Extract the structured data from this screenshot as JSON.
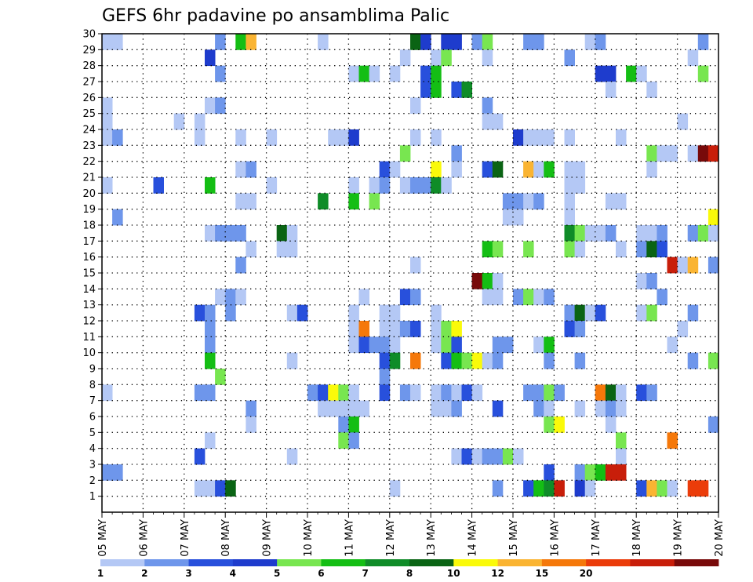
{
  "chart_data": {
    "type": "heatmap",
    "title": "GEFS 6hr padavine po ansamblima Palic",
    "xlabel": "",
    "ylabel": "",
    "x_tick_labels": [
      "05 MAY",
      "06 MAY",
      "07 MAY",
      "08 MAY",
      "09 MAY",
      "10 MAY",
      "11 MAY",
      "12 MAY",
      "13 MAY",
      "14 MAY",
      "15 MAY",
      "16 MAY",
      "17 MAY",
      "18 MAY",
      "19 MAY",
      "20 MAY"
    ],
    "x_range": [
      0,
      60
    ],
    "y_range": [
      0,
      30
    ],
    "y_tick_labels": [
      "1",
      "2",
      "3",
      "4",
      "5",
      "6",
      "7",
      "8",
      "9",
      "10",
      "11",
      "12",
      "13",
      "14",
      "15",
      "16",
      "17",
      "18",
      "19",
      "20",
      "21",
      "22",
      "23",
      "24",
      "25",
      "26",
      "27",
      "28",
      "29",
      "30"
    ],
    "grid": true,
    "levels": [
      1,
      2,
      3,
      4,
      5,
      6,
      7,
      8,
      10,
      12,
      15,
      20
    ],
    "level_labels": [
      "1",
      "2",
      "3",
      "4",
      "5",
      "6",
      "7",
      "8",
      "10",
      "12",
      "15",
      "20"
    ],
    "colors": [
      "#b4c8f5",
      "#6e96eb",
      "#2850dc",
      "#1e3ccd",
      "#78e650",
      "#14be14",
      "#0f8c28",
      "#0a6414",
      "#fafa0a",
      "#fab432",
      "#f5780a",
      "#eb3c0a",
      "#c81e0a",
      "#780a0a"
    ],
    "cells": [
      [
        1,
        30,
        1
      ],
      [
        2,
        30,
        1
      ],
      [
        12,
        30,
        2
      ],
      [
        14,
        30,
        6
      ],
      [
        15,
        30,
        10
      ],
      [
        22,
        30,
        1
      ],
      [
        31,
        30,
        8
      ],
      [
        32,
        30,
        4
      ],
      [
        34,
        30,
        4
      ],
      [
        35,
        30,
        4
      ],
      [
        37,
        30,
        2
      ],
      [
        38,
        30,
        5
      ],
      [
        42,
        30,
        2
      ],
      [
        43,
        30,
        2
      ],
      [
        48,
        30,
        1
      ],
      [
        49,
        30,
        2
      ],
      [
        59,
        30,
        2
      ],
      [
        11,
        29,
        4
      ],
      [
        30,
        29,
        1
      ],
      [
        33,
        29,
        1
      ],
      [
        34,
        29,
        5
      ],
      [
        38,
        29,
        1
      ],
      [
        46,
        29,
        2
      ],
      [
        58,
        29,
        1
      ],
      [
        12,
        28,
        2
      ],
      [
        25,
        28,
        1
      ],
      [
        26,
        28,
        6
      ],
      [
        27,
        28,
        1
      ],
      [
        29,
        28,
        1
      ],
      [
        32,
        28,
        3
      ],
      [
        33,
        28,
        6
      ],
      [
        49,
        28,
        4
      ],
      [
        50,
        28,
        4
      ],
      [
        52,
        28,
        6
      ],
      [
        53,
        28,
        1
      ],
      [
        59,
        28,
        5
      ],
      [
        32,
        27,
        3
      ],
      [
        33,
        27,
        6
      ],
      [
        35,
        27,
        3
      ],
      [
        36,
        27,
        7
      ],
      [
        50,
        27,
        1
      ],
      [
        54,
        27,
        1
      ],
      [
        1,
        26,
        1
      ],
      [
        11,
        26,
        1
      ],
      [
        12,
        26,
        2
      ],
      [
        31,
        26,
        1
      ],
      [
        38,
        26,
        2
      ],
      [
        1,
        25,
        1
      ],
      [
        8,
        25,
        1
      ],
      [
        10,
        25,
        1
      ],
      [
        38,
        25,
        1
      ],
      [
        39,
        25,
        1
      ],
      [
        57,
        25,
        1
      ],
      [
        1,
        24,
        1
      ],
      [
        2,
        24,
        2
      ],
      [
        10,
        24,
        1
      ],
      [
        14,
        24,
        1
      ],
      [
        17,
        24,
        1
      ],
      [
        23,
        24,
        1
      ],
      [
        24,
        24,
        1
      ],
      [
        25,
        24,
        4
      ],
      [
        31,
        24,
        1
      ],
      [
        33,
        24,
        1
      ],
      [
        41,
        24,
        4
      ],
      [
        42,
        24,
        1
      ],
      [
        43,
        24,
        1
      ],
      [
        44,
        24,
        1
      ],
      [
        46,
        24,
        1
      ],
      [
        51,
        24,
        1
      ],
      [
        30,
        23,
        5
      ],
      [
        35,
        23,
        2
      ],
      [
        54,
        23,
        5
      ],
      [
        55,
        23,
        1
      ],
      [
        56,
        23,
        1
      ],
      [
        58,
        23,
        1
      ],
      [
        59,
        23,
        14
      ],
      [
        60,
        23,
        13
      ],
      [
        14,
        22,
        1
      ],
      [
        15,
        22,
        2
      ],
      [
        28,
        22,
        3
      ],
      [
        29,
        22,
        1
      ],
      [
        33,
        22,
        9
      ],
      [
        35,
        22,
        1
      ],
      [
        38,
        22,
        3
      ],
      [
        39,
        22,
        8
      ],
      [
        42,
        22,
        10
      ],
      [
        43,
        22,
        1
      ],
      [
        44,
        22,
        6
      ],
      [
        46,
        22,
        1
      ],
      [
        47,
        22,
        1
      ],
      [
        54,
        22,
        1
      ],
      [
        1,
        21,
        1
      ],
      [
        6,
        21,
        3
      ],
      [
        11,
        21,
        6
      ],
      [
        17,
        21,
        1
      ],
      [
        25,
        21,
        1
      ],
      [
        27,
        21,
        1
      ],
      [
        28,
        21,
        2
      ],
      [
        30,
        21,
        1
      ],
      [
        31,
        21,
        2
      ],
      [
        32,
        21,
        2
      ],
      [
        33,
        21,
        7
      ],
      [
        34,
        21,
        1
      ],
      [
        46,
        21,
        1
      ],
      [
        47,
        21,
        1
      ],
      [
        14,
        20,
        1
      ],
      [
        15,
        20,
        1
      ],
      [
        22,
        20,
        7
      ],
      [
        25,
        20,
        6
      ],
      [
        27,
        20,
        5
      ],
      [
        40,
        20,
        2
      ],
      [
        41,
        20,
        2
      ],
      [
        42,
        20,
        1
      ],
      [
        43,
        20,
        2
      ],
      [
        46,
        20,
        1
      ],
      [
        50,
        20,
        1
      ],
      [
        51,
        20,
        1
      ],
      [
        2,
        19,
        2
      ],
      [
        40,
        19,
        1
      ],
      [
        41,
        19,
        1
      ],
      [
        46,
        19,
        1
      ],
      [
        60,
        19,
        9
      ],
      [
        11,
        18,
        1
      ],
      [
        12,
        18,
        2
      ],
      [
        13,
        18,
        2
      ],
      [
        14,
        18,
        2
      ],
      [
        18,
        18,
        8
      ],
      [
        19,
        18,
        1
      ],
      [
        46,
        18,
        7
      ],
      [
        47,
        18,
        5
      ],
      [
        48,
        18,
        1
      ],
      [
        49,
        18,
        1
      ],
      [
        50,
        18,
        2
      ],
      [
        53,
        18,
        1
      ],
      [
        54,
        18,
        1
      ],
      [
        55,
        18,
        2
      ],
      [
        58,
        18,
        2
      ],
      [
        59,
        18,
        5
      ],
      [
        60,
        18,
        1
      ],
      [
        15,
        17,
        1
      ],
      [
        18,
        17,
        1
      ],
      [
        19,
        17,
        1
      ],
      [
        38,
        17,
        6
      ],
      [
        39,
        17,
        5
      ],
      [
        42,
        17,
        5
      ],
      [
        46,
        17,
        5
      ],
      [
        47,
        17,
        1
      ],
      [
        51,
        17,
        1
      ],
      [
        53,
        17,
        2
      ],
      [
        54,
        17,
        8
      ],
      [
        55,
        17,
        3
      ],
      [
        14,
        16,
        2
      ],
      [
        31,
        16,
        1
      ],
      [
        56,
        16,
        13
      ],
      [
        57,
        16,
        1
      ],
      [
        58,
        16,
        10
      ],
      [
        60,
        16,
        2
      ],
      [
        37,
        15,
        14
      ],
      [
        38,
        15,
        6
      ],
      [
        39,
        15,
        1
      ],
      [
        53,
        15,
        1
      ],
      [
        54,
        15,
        2
      ],
      [
        12,
        14,
        1
      ],
      [
        13,
        14,
        2
      ],
      [
        14,
        14,
        1
      ],
      [
        26,
        14,
        1
      ],
      [
        30,
        14,
        3
      ],
      [
        31,
        14,
        2
      ],
      [
        38,
        14,
        1
      ],
      [
        39,
        14,
        1
      ],
      [
        41,
        14,
        2
      ],
      [
        42,
        14,
        5
      ],
      [
        43,
        14,
        1
      ],
      [
        44,
        14,
        2
      ],
      [
        55,
        14,
        2
      ],
      [
        10,
        13,
        3
      ],
      [
        11,
        13,
        2
      ],
      [
        13,
        13,
        2
      ],
      [
        19,
        13,
        1
      ],
      [
        20,
        13,
        3
      ],
      [
        25,
        13,
        1
      ],
      [
        28,
        13,
        1
      ],
      [
        29,
        13,
        1
      ],
      [
        33,
        13,
        1
      ],
      [
        46,
        13,
        2
      ],
      [
        47,
        13,
        8
      ],
      [
        48,
        13,
        1
      ],
      [
        49,
        13,
        3
      ],
      [
        53,
        13,
        1
      ],
      [
        54,
        13,
        5
      ],
      [
        58,
        13,
        2
      ],
      [
        11,
        12,
        2
      ],
      [
        25,
        12,
        1
      ],
      [
        26,
        12,
        11
      ],
      [
        28,
        12,
        1
      ],
      [
        29,
        12,
        1
      ],
      [
        30,
        12,
        2
      ],
      [
        31,
        12,
        3
      ],
      [
        33,
        12,
        1
      ],
      [
        34,
        12,
        5
      ],
      [
        35,
        12,
        9
      ],
      [
        46,
        12,
        3
      ],
      [
        47,
        12,
        2
      ],
      [
        57,
        12,
        1
      ],
      [
        11,
        11,
        2
      ],
      [
        25,
        11,
        1
      ],
      [
        26,
        11,
        3
      ],
      [
        27,
        11,
        2
      ],
      [
        28,
        11,
        2
      ],
      [
        29,
        11,
        1
      ],
      [
        33,
        11,
        1
      ],
      [
        34,
        11,
        5
      ],
      [
        35,
        11,
        3
      ],
      [
        39,
        11,
        2
      ],
      [
        40,
        11,
        2
      ],
      [
        43,
        11,
        1
      ],
      [
        44,
        11,
        6
      ],
      [
        56,
        11,
        1
      ],
      [
        11,
        10,
        6
      ],
      [
        19,
        10,
        1
      ],
      [
        28,
        10,
        3
      ],
      [
        29,
        10,
        7
      ],
      [
        31,
        10,
        11
      ],
      [
        34,
        10,
        3
      ],
      [
        35,
        10,
        6
      ],
      [
        36,
        10,
        5
      ],
      [
        37,
        10,
        9
      ],
      [
        38,
        10,
        1
      ],
      [
        39,
        10,
        2
      ],
      [
        44,
        10,
        2
      ],
      [
        47,
        10,
        2
      ],
      [
        58,
        10,
        2
      ],
      [
        60,
        10,
        5
      ],
      [
        12,
        9,
        5
      ],
      [
        28,
        9,
        2
      ],
      [
        1,
        8,
        1
      ],
      [
        10,
        8,
        2
      ],
      [
        11,
        8,
        2
      ],
      [
        21,
        8,
        2
      ],
      [
        22,
        8,
        3
      ],
      [
        23,
        8,
        9
      ],
      [
        24,
        8,
        5
      ],
      [
        25,
        8,
        1
      ],
      [
        28,
        8,
        3
      ],
      [
        30,
        8,
        2
      ],
      [
        31,
        8,
        1
      ],
      [
        33,
        8,
        1
      ],
      [
        34,
        8,
        2
      ],
      [
        35,
        8,
        1
      ],
      [
        36,
        8,
        3
      ],
      [
        37,
        8,
        1
      ],
      [
        42,
        8,
        2
      ],
      [
        43,
        8,
        2
      ],
      [
        44,
        8,
        5
      ],
      [
        45,
        8,
        2
      ],
      [
        49,
        8,
        11
      ],
      [
        50,
        8,
        8
      ],
      [
        51,
        8,
        1
      ],
      [
        53,
        8,
        3
      ],
      [
        54,
        8,
        2
      ],
      [
        15,
        7,
        2
      ],
      [
        22,
        7,
        1
      ],
      [
        23,
        7,
        1
      ],
      [
        24,
        7,
        1
      ],
      [
        25,
        7,
        1
      ],
      [
        26,
        7,
        1
      ],
      [
        33,
        7,
        1
      ],
      [
        34,
        7,
        1
      ],
      [
        35,
        7,
        2
      ],
      [
        39,
        7,
        3
      ],
      [
        43,
        7,
        2
      ],
      [
        44,
        7,
        1
      ],
      [
        47,
        7,
        1
      ],
      [
        49,
        7,
        1
      ],
      [
        50,
        7,
        2
      ],
      [
        51,
        7,
        1
      ],
      [
        15,
        6,
        1
      ],
      [
        24,
        6,
        2
      ],
      [
        25,
        6,
        6
      ],
      [
        44,
        6,
        5
      ],
      [
        45,
        6,
        9
      ],
      [
        50,
        6,
        1
      ],
      [
        60,
        6,
        2
      ],
      [
        11,
        5,
        1
      ],
      [
        24,
        5,
        5
      ],
      [
        25,
        5,
        2
      ],
      [
        51,
        5,
        5
      ],
      [
        56,
        5,
        11
      ],
      [
        10,
        4,
        3
      ],
      [
        19,
        4,
        1
      ],
      [
        35,
        4,
        1
      ],
      [
        36,
        4,
        3
      ],
      [
        37,
        4,
        1
      ],
      [
        38,
        4,
        2
      ],
      [
        39,
        4,
        2
      ],
      [
        40,
        4,
        5
      ],
      [
        41,
        4,
        1
      ],
      [
        51,
        4,
        1
      ],
      [
        1,
        3,
        2
      ],
      [
        2,
        3,
        2
      ],
      [
        44,
        3,
        3
      ],
      [
        47,
        3,
        2
      ],
      [
        48,
        3,
        5
      ],
      [
        49,
        3,
        6
      ],
      [
        50,
        3,
        13
      ],
      [
        51,
        3,
        13
      ],
      [
        10,
        2,
        1
      ],
      [
        11,
        2,
        1
      ],
      [
        12,
        2,
        3
      ],
      [
        13,
        2,
        8
      ],
      [
        29,
        2,
        1
      ],
      [
        39,
        2,
        2
      ],
      [
        42,
        2,
        3
      ],
      [
        43,
        2,
        6
      ],
      [
        44,
        2,
        7
      ],
      [
        45,
        2,
        13
      ],
      [
        47,
        2,
        4
      ],
      [
        48,
        2,
        1
      ],
      [
        53,
        2,
        3
      ],
      [
        54,
        2,
        10
      ],
      [
        55,
        2,
        5
      ],
      [
        56,
        2,
        1
      ],
      [
        58,
        2,
        12
      ],
      [
        59,
        2,
        12
      ]
    ]
  }
}
